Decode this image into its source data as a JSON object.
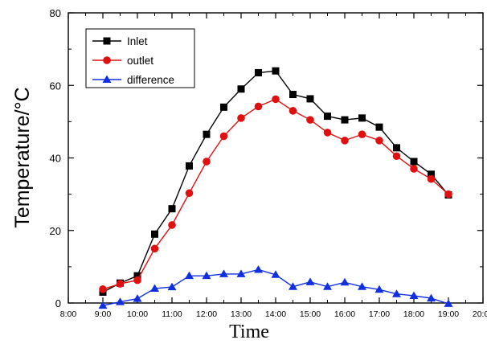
{
  "chart_data": {
    "type": "line",
    "title": "",
    "xlabel": "Time",
    "ylabel": "Temperature/°C",
    "xlim": [
      "8:00",
      "20:00"
    ],
    "ylim": [
      0,
      80
    ],
    "x_ticks": [
      "8:00",
      "9:00",
      "10:00",
      "11:00",
      "12:00",
      "13:00",
      "14:00",
      "15:00",
      "16:00",
      "17:00",
      "18:00",
      "19:00",
      "20:00"
    ],
    "y_ticks": [
      0,
      20,
      40,
      60,
      80
    ],
    "grid": false,
    "legend_position": "top-left",
    "x": [
      "9:00",
      "9:30",
      "10:00",
      "10:30",
      "11:00",
      "11:30",
      "12:00",
      "12:30",
      "13:00",
      "13:30",
      "14:00",
      "14:30",
      "15:00",
      "15:30",
      "16:00",
      "16:30",
      "17:00",
      "17:30",
      "18:00",
      "18:30",
      "19:00"
    ],
    "series": [
      {
        "name": "Inlet",
        "color": "#000000",
        "marker": "square",
        "values": [
          3.0,
          5.5,
          7.5,
          19.0,
          26.0,
          37.8,
          46.5,
          54.0,
          59.0,
          63.5,
          64.0,
          57.5,
          56.3,
          51.5,
          50.5,
          51.0,
          48.5,
          42.8,
          39.0,
          35.5,
          29.8
        ]
      },
      {
        "name": "outlet",
        "color": "#e01010",
        "marker": "circle",
        "values": [
          3.8,
          5.3,
          6.3,
          15.0,
          21.5,
          30.3,
          39.0,
          46.0,
          51.0,
          54.2,
          56.2,
          53.0,
          50.5,
          47.0,
          44.8,
          46.5,
          44.8,
          40.5,
          37.0,
          34.2,
          30.0
        ]
      },
      {
        "name": "difference",
        "color": "#1030e0",
        "marker": "triangle",
        "values": [
          -0.7,
          0.3,
          1.2,
          4.0,
          4.4,
          7.5,
          7.5,
          8.0,
          8.0,
          9.2,
          7.8,
          4.5,
          5.8,
          4.5,
          5.7,
          4.5,
          3.7,
          2.5,
          2.0,
          1.3,
          -0.2
        ]
      }
    ]
  }
}
